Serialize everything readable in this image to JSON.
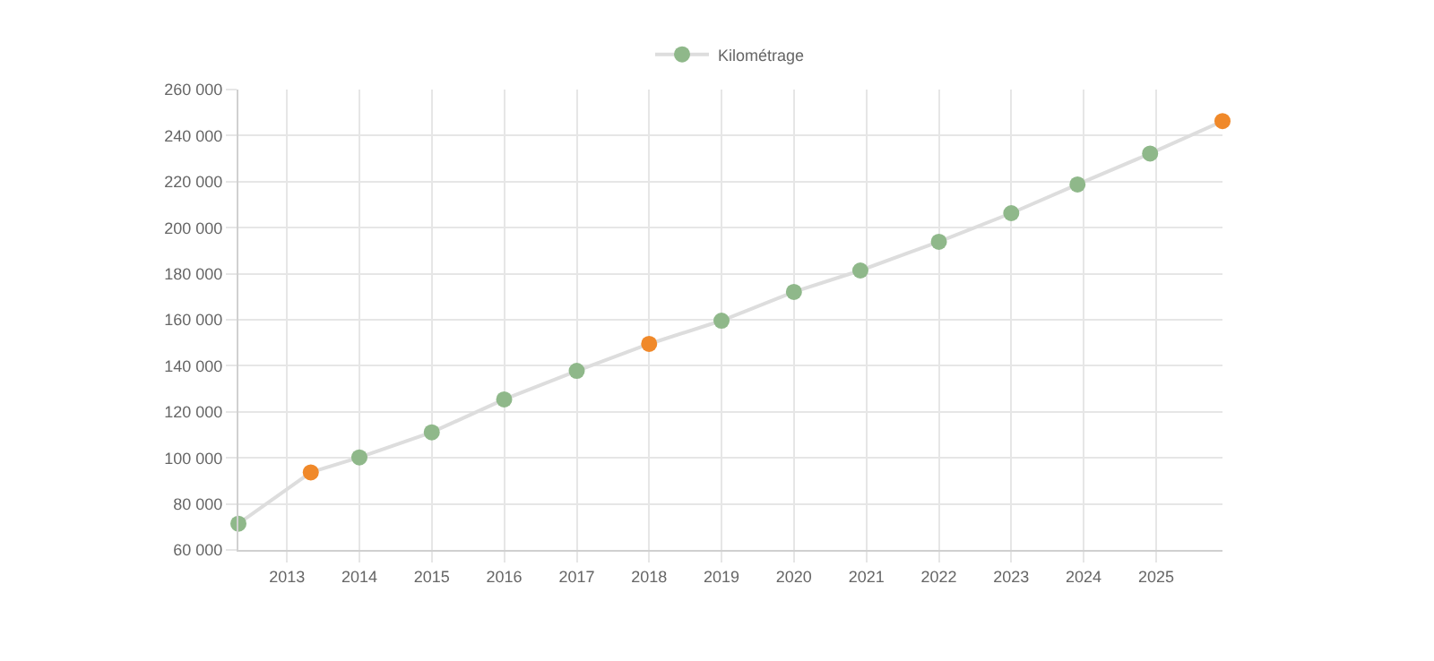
{
  "chart_data": {
    "type": "line",
    "x": [
      "2012-05",
      "2013-05",
      "2014-01",
      "2015-01",
      "2016-01",
      "2017-01",
      "2018-01",
      "2019-01",
      "2020-01",
      "2020-12",
      "2022-01",
      "2023-01",
      "2023-12",
      "2024-12",
      "2025-12"
    ],
    "series": [
      {
        "name": "Kilométrage",
        "color": "#dddddd",
        "colors": [
          "#8fb88a",
          "#f0892a",
          "#8fb88a",
          "#8fb88a",
          "#8fb88a",
          "#8fb88a",
          "#f0892a",
          "#8fb88a",
          "#8fb88a",
          "#8fb88a",
          "#8fb88a",
          "#8fb88a",
          "#8fb88a",
          "#8fb88a",
          "#f0892a"
        ],
        "values": [
          71400,
          93700,
          100200,
          111100,
          125400,
          137800,
          149500,
          159600,
          172100,
          181400,
          193900,
          206300,
          218800,
          232200,
          246300
        ]
      }
    ],
    "xlim": [
      "2012-05",
      "2025-12"
    ],
    "xticks": [
      "2013",
      "2014",
      "2015",
      "2016",
      "2017",
      "2018",
      "2019",
      "2020",
      "2021",
      "2022",
      "2023",
      "2024",
      "2025"
    ],
    "ylim": [
      60000,
      260000
    ],
    "yticks": [
      {
        "value": 60000,
        "label": "60 000"
      },
      {
        "value": 80000,
        "label": "80 000"
      },
      {
        "value": 100000,
        "label": "100 000"
      },
      {
        "value": 120000,
        "label": "120 000"
      },
      {
        "value": 140000,
        "label": "140 000"
      },
      {
        "value": 160000,
        "label": "160 000"
      },
      {
        "value": 180000,
        "label": "180 000"
      },
      {
        "value": 200000,
        "label": "200 000"
      },
      {
        "value": 220000,
        "label": "220 000"
      },
      {
        "value": 240000,
        "label": "240 000"
      },
      {
        "value": 260000,
        "label": "260 000"
      }
    ],
    "grid": true,
    "legend": "top",
    "marker": "circle",
    "line_style": "solid"
  }
}
